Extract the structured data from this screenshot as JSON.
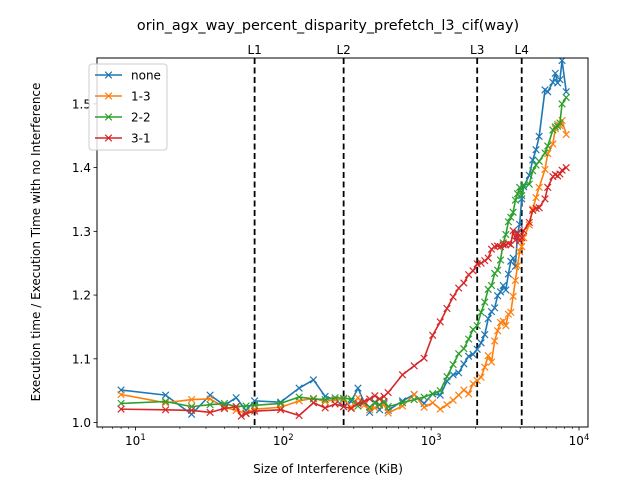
{
  "chart_data": {
    "type": "line",
    "title": "orin_agx_way_percent_disparity_prefetch_l3_cif(way)",
    "xlabel": "Size of Interference (KiB)",
    "ylabel": "Execution time / Execution Time with no Interference",
    "xscale": "log",
    "xlim": [
      5.5,
      11500
    ],
    "ylim": [
      0.993,
      1.572
    ],
    "xticks": [
      {
        "value": 10,
        "base": "10",
        "exp": "1"
      },
      {
        "value": 100,
        "base": "10",
        "exp": "2"
      },
      {
        "value": 1000,
        "base": "10",
        "exp": "3"
      },
      {
        "value": 10000,
        "base": "10",
        "exp": "4"
      }
    ],
    "yticks": [
      {
        "value": 1.0,
        "label": "1.0"
      },
      {
        "value": 1.1,
        "label": "1.1"
      },
      {
        "value": 1.2,
        "label": "1.2"
      },
      {
        "value": 1.3,
        "label": "1.3"
      },
      {
        "value": 1.4,
        "label": "1.4"
      },
      {
        "value": 1.5,
        "label": "1.5"
      }
    ],
    "vlines": [
      {
        "label": "L1",
        "x": 64
      },
      {
        "label": "L2",
        "x": 256
      },
      {
        "label": "L3",
        "x": 2048
      },
      {
        "label": "L4",
        "x": 4096
      }
    ],
    "legend_position": "upper-left",
    "series": [
      {
        "name": "none",
        "color": "#1f77b4",
        "points": [
          [
            8,
            1.051
          ],
          [
            16,
            1.043
          ],
          [
            24,
            1.013
          ],
          [
            32,
            1.043
          ],
          [
            40,
            1.027
          ],
          [
            48,
            1.039
          ],
          [
            56,
            1.019
          ],
          [
            64,
            1.034
          ],
          [
            96,
            1.032
          ],
          [
            128,
            1.054
          ],
          [
            160,
            1.067
          ],
          [
            192,
            1.041
          ],
          [
            224,
            1.036
          ],
          [
            256,
            1.025
          ],
          [
            288,
            1.033
          ],
          [
            320,
            1.054
          ],
          [
            352,
            1.032
          ],
          [
            384,
            1.016
          ],
          [
            416,
            1.032
          ],
          [
            448,
            1.02
          ],
          [
            480,
            1.03
          ],
          [
            512,
            1.019
          ],
          [
            640,
            1.034
          ],
          [
            768,
            1.044
          ],
          [
            896,
            1.03
          ],
          [
            1024,
            1.045
          ],
          [
            1152,
            1.043
          ],
          [
            1280,
            1.065
          ],
          [
            1408,
            1.075
          ],
          [
            1536,
            1.078
          ],
          [
            1664,
            1.092
          ],
          [
            1792,
            1.104
          ],
          [
            1920,
            1.107
          ],
          [
            2048,
            1.115
          ],
          [
            2176,
            1.125
          ],
          [
            2304,
            1.138
          ],
          [
            2432,
            1.163
          ],
          [
            2560,
            1.174
          ],
          [
            2688,
            1.18
          ],
          [
            2816,
            1.199
          ],
          [
            2944,
            1.205
          ],
          [
            3072,
            1.215
          ],
          [
            3200,
            1.208
          ],
          [
            3328,
            1.233
          ],
          [
            3456,
            1.253
          ],
          [
            3584,
            1.258
          ],
          [
            3712,
            1.245
          ],
          [
            3840,
            1.296
          ],
          [
            3968,
            1.311
          ],
          [
            4096,
            1.351
          ],
          [
            4224,
            1.37
          ],
          [
            4608,
            1.388
          ],
          [
            4864,
            1.412
          ],
          [
            5120,
            1.428
          ],
          [
            5376,
            1.449
          ],
          [
            5888,
            1.522
          ],
          [
            6144,
            1.519
          ],
          [
            6656,
            1.534
          ],
          [
            6912,
            1.548
          ],
          [
            7168,
            1.533
          ],
          [
            7424,
            1.538
          ],
          [
            7680,
            1.568
          ],
          [
            8192,
            1.519
          ]
        ]
      },
      {
        "name": "1-3",
        "color": "#ff7f0e",
        "points": [
          [
            8,
            1.044
          ],
          [
            16,
            1.031
          ],
          [
            24,
            1.036
          ],
          [
            32,
            1.037
          ],
          [
            40,
            1.024
          ],
          [
            48,
            1.019
          ],
          [
            56,
            1.015
          ],
          [
            64,
            1.021
          ],
          [
            96,
            1.024
          ],
          [
            128,
            1.034
          ],
          [
            160,
            1.038
          ],
          [
            192,
            1.033
          ],
          [
            224,
            1.036
          ],
          [
            256,
            1.036
          ],
          [
            288,
            1.024
          ],
          [
            320,
            1.039
          ],
          [
            352,
            1.027
          ],
          [
            384,
            1.02
          ],
          [
            416,
            1.023
          ],
          [
            448,
            1.027
          ],
          [
            480,
            1.028
          ],
          [
            512,
            1.015
          ],
          [
            640,
            1.026
          ],
          [
            768,
            1.044
          ],
          [
            896,
            1.024
          ],
          [
            1024,
            1.031
          ],
          [
            1152,
            1.021
          ],
          [
            1280,
            1.028
          ],
          [
            1408,
            1.035
          ],
          [
            1536,
            1.043
          ],
          [
            1664,
            1.051
          ],
          [
            1792,
            1.045
          ],
          [
            1920,
            1.061
          ],
          [
            2048,
            1.066
          ],
          [
            2176,
            1.071
          ],
          [
            2304,
            1.087
          ],
          [
            2432,
            1.105
          ],
          [
            2560,
            1.095
          ],
          [
            2688,
            1.128
          ],
          [
            2816,
            1.144
          ],
          [
            2944,
            1.157
          ],
          [
            3072,
            1.159
          ],
          [
            3200,
            1.152
          ],
          [
            3328,
            1.17
          ],
          [
            3456,
            1.173
          ],
          [
            3584,
            1.198
          ],
          [
            3712,
            1.223
          ],
          [
            3840,
            1.246
          ],
          [
            3968,
            1.268
          ],
          [
            4096,
            1.276
          ],
          [
            4224,
            1.29
          ],
          [
            4608,
            1.31
          ],
          [
            4864,
            1.335
          ],
          [
            5120,
            1.353
          ],
          [
            5376,
            1.369
          ],
          [
            5888,
            1.397
          ],
          [
            6144,
            1.422
          ],
          [
            6656,
            1.437
          ],
          [
            6912,
            1.461
          ],
          [
            7168,
            1.468
          ],
          [
            7424,
            1.466
          ],
          [
            7680,
            1.474
          ],
          [
            8192,
            1.452
          ]
        ]
      },
      {
        "name": "2-2",
        "color": "#2ca02c",
        "points": [
          [
            8,
            1.03
          ],
          [
            16,
            1.033
          ],
          [
            24,
            1.025
          ],
          [
            32,
            1.028
          ],
          [
            40,
            1.03
          ],
          [
            48,
            1.025
          ],
          [
            56,
            1.026
          ],
          [
            64,
            1.027
          ],
          [
            96,
            1.03
          ],
          [
            128,
            1.04
          ],
          [
            160,
            1.037
          ],
          [
            192,
            1.036
          ],
          [
            224,
            1.039
          ],
          [
            256,
            1.038
          ],
          [
            288,
            1.037
          ],
          [
            320,
            1.026
          ],
          [
            352,
            1.032
          ],
          [
            384,
            1.024
          ],
          [
            416,
            1.031
          ],
          [
            448,
            1.028
          ],
          [
            480,
            1.033
          ],
          [
            512,
            1.025
          ],
          [
            640,
            1.031
          ],
          [
            768,
            1.036
          ],
          [
            896,
            1.04
          ],
          [
            1024,
            1.045
          ],
          [
            1152,
            1.05
          ],
          [
            1280,
            1.072
          ],
          [
            1408,
            1.091
          ],
          [
            1536,
            1.108
          ],
          [
            1664,
            1.116
          ],
          [
            1792,
            1.131
          ],
          [
            1920,
            1.146
          ],
          [
            2048,
            1.152
          ],
          [
            2176,
            1.173
          ],
          [
            2304,
            1.189
          ],
          [
            2432,
            1.209
          ],
          [
            2560,
            1.215
          ],
          [
            2688,
            1.234
          ],
          [
            2816,
            1.239
          ],
          [
            2944,
            1.255
          ],
          [
            3072,
            1.282
          ],
          [
            3200,
            1.295
          ],
          [
            3328,
            1.315
          ],
          [
            3456,
            1.322
          ],
          [
            3584,
            1.33
          ],
          [
            3712,
            1.349
          ],
          [
            3840,
            1.359
          ],
          [
            3968,
            1.369
          ],
          [
            4096,
            1.356
          ],
          [
            4224,
            1.373
          ],
          [
            4608,
            1.374
          ],
          [
            4864,
            1.395
          ],
          [
            5120,
            1.404
          ],
          [
            5376,
            1.41
          ],
          [
            5888,
            1.423
          ],
          [
            6144,
            1.434
          ],
          [
            6656,
            1.459
          ],
          [
            6912,
            1.464
          ],
          [
            7168,
            1.465
          ],
          [
            7424,
            1.47
          ],
          [
            7680,
            1.5
          ],
          [
            8192,
            1.51
          ]
        ]
      },
      {
        "name": "3-1",
        "color": "#d62728",
        "points": [
          [
            8,
            1.021
          ],
          [
            16,
            1.02
          ],
          [
            24,
            1.019
          ],
          [
            32,
            1.016
          ],
          [
            40,
            1.022
          ],
          [
            48,
            1.025
          ],
          [
            52,
            1.01
          ],
          [
            56,
            1.014
          ],
          [
            64,
            1.018
          ],
          [
            96,
            1.02
          ],
          [
            128,
            1.011
          ],
          [
            160,
            1.031
          ],
          [
            192,
            1.023
          ],
          [
            224,
            1.029
          ],
          [
            256,
            1.025
          ],
          [
            288,
            1.022
          ],
          [
            320,
            1.03
          ],
          [
            352,
            1.033
          ],
          [
            384,
            1.037
          ],
          [
            416,
            1.042
          ],
          [
            448,
            1.037
          ],
          [
            480,
            1.041
          ],
          [
            512,
            1.047
          ],
          [
            640,
            1.075
          ],
          [
            768,
            1.089
          ],
          [
            896,
            1.101
          ],
          [
            1024,
            1.137
          ],
          [
            1152,
            1.158
          ],
          [
            1280,
            1.179
          ],
          [
            1408,
            1.197
          ],
          [
            1536,
            1.211
          ],
          [
            1664,
            1.219
          ],
          [
            1792,
            1.232
          ],
          [
            1920,
            1.238
          ],
          [
            2048,
            1.249
          ],
          [
            2176,
            1.25
          ],
          [
            2304,
            1.254
          ],
          [
            2432,
            1.258
          ],
          [
            2560,
            1.272
          ],
          [
            2688,
            1.276
          ],
          [
            2816,
            1.277
          ],
          [
            2944,
            1.276
          ],
          [
            3072,
            1.279
          ],
          [
            3200,
            1.279
          ],
          [
            3328,
            1.281
          ],
          [
            3456,
            1.279
          ],
          [
            3584,
            1.301
          ],
          [
            3712,
            1.286
          ],
          [
            3840,
            1.298
          ],
          [
            3968,
            1.285
          ],
          [
            4096,
            1.29
          ],
          [
            4224,
            1.301
          ],
          [
            4608,
            1.314
          ],
          [
            4864,
            1.333
          ],
          [
            5120,
            1.336
          ],
          [
            5376,
            1.337
          ],
          [
            5888,
            1.351
          ],
          [
            6144,
            1.369
          ],
          [
            6656,
            1.386
          ],
          [
            6912,
            1.389
          ],
          [
            7168,
            1.387
          ],
          [
            7424,
            1.39
          ],
          [
            7680,
            1.396
          ],
          [
            8192,
            1.4
          ]
        ]
      }
    ]
  }
}
